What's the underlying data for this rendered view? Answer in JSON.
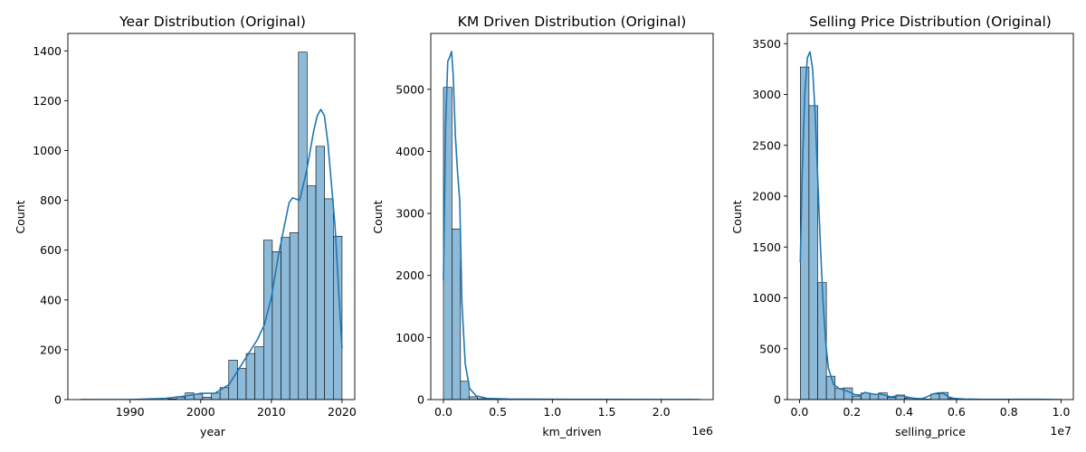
{
  "colors": {
    "bar_fill": "#8dbad8",
    "bar_edge": "#000000",
    "kde_line": "#1f77b4",
    "axis": "#000000",
    "background": "#ffffff"
  },
  "chart_data": [
    {
      "type": "bar",
      "subtype": "histogram-with-kde",
      "title": "Year Distribution (Original)",
      "xlabel": "year",
      "ylabel": "Count",
      "xlim": [
        1981.2,
        2021.8
      ],
      "ylim": [
        0,
        1470
      ],
      "xticks": [
        1990,
        2000,
        2010,
        2020
      ],
      "xtick_labels": [
        "1990",
        "2000",
        "2010",
        "2020"
      ],
      "yticks": [
        0,
        200,
        400,
        600,
        800,
        1000,
        1200,
        1400
      ],
      "ytick_labels": [
        "0",
        "200",
        "400",
        "600",
        "800",
        "1000",
        "1200",
        "1400"
      ],
      "x_offset_label": "",
      "grid": false,
      "bin_edges": [
        1983,
        1984.233,
        1985.467,
        1986.7,
        1987.933,
        1989.167,
        1990.4,
        1991.633,
        1992.867,
        1994.1,
        1995.333,
        1996.567,
        1997.8,
        1999.033,
        2000.267,
        2001.5,
        2002.733,
        2003.967,
        2005.2,
        2006.433,
        2007.667,
        2008.9,
        2010.133,
        2011.367,
        2012.6,
        2013.833,
        2015.067,
        2016.3,
        2017.533,
        2018.767,
        2020
      ],
      "counts": [
        1,
        0,
        0,
        0,
        0,
        0,
        0,
        0,
        0,
        0,
        3,
        10,
        27,
        22,
        10,
        26,
        48,
        158,
        125,
        185,
        212,
        640,
        594,
        651,
        670,
        1395,
        858,
        1017,
        806,
        656
      ],
      "kde": {
        "x": [
          1983,
          1990,
          1995,
          1998,
          2000,
          2002,
          2004,
          2006,
          2008,
          2009,
          2010,
          2011,
          2012,
          2012.5,
          2013,
          2013.5,
          2014,
          2015,
          2016,
          2016.5,
          2017,
          2017.5,
          2018,
          2019,
          2019.5,
          2020
        ],
        "y": [
          0,
          0,
          5,
          15,
          25,
          25,
          60,
          150,
          240,
          300,
          410,
          580,
          720,
          790,
          810,
          805,
          800,
          920,
          1080,
          1140,
          1165,
          1140,
          1030,
          700,
          450,
          205
        ]
      }
    },
    {
      "type": "bar",
      "subtype": "histogram-with-kde",
      "title": "KM Driven Distribution (Original)",
      "xlabel": "km_driven",
      "ylabel": "Count",
      "xlim": [
        -116000,
        2476000
      ],
      "ylim": [
        0,
        5900
      ],
      "xticks": [
        0,
        500000,
        1000000,
        1500000,
        2000000
      ],
      "xtick_labels": [
        "0.0",
        "0.5",
        "1.0",
        "1.5",
        "2.0"
      ],
      "yticks": [
        0,
        1000,
        2000,
        3000,
        4000,
        5000
      ],
      "ytick_labels": [
        "0",
        "1000",
        "2000",
        "3000",
        "4000",
        "5000"
      ],
      "x_offset_label": "1e6",
      "grid": false,
      "bin_edges": [
        1,
        78334,
        156667,
        235000,
        313333,
        391667,
        470000,
        548333,
        626667,
        705000,
        783333,
        861667,
        940000,
        1018333,
        1096667,
        1175000,
        1253333,
        1331667,
        1410000,
        1488333,
        1566667,
        1645000,
        1723333,
        1801667,
        1880000,
        1958333,
        2036667,
        2115000,
        2193333,
        2271667,
        2360457
      ],
      "counts": [
        5030,
        2750,
        295,
        45,
        15,
        6,
        4,
        3,
        2,
        1,
        1,
        1,
        1,
        0,
        0,
        0,
        0,
        0,
        0,
        0,
        0,
        0,
        0,
        0,
        0,
        0,
        0,
        0,
        0,
        1
      ],
      "kde": {
        "x": [
          1,
          20000,
          40000,
          60000,
          75000,
          90000,
          110000,
          130000,
          150000,
          170000,
          200000,
          240000,
          300000,
          400000,
          600000,
          1000000,
          1500000,
          2000000,
          2360457
        ],
        "y": [
          1920,
          4400,
          5450,
          5530,
          5610,
          5220,
          4240,
          3660,
          3200,
          1560,
          580,
          180,
          60,
          20,
          8,
          4,
          2,
          1,
          0
        ]
      }
    },
    {
      "type": "bar",
      "subtype": "histogram-with-kde",
      "title": "Selling Price Distribution (Original)",
      "xlabel": "selling_price",
      "ylabel": "Count",
      "xlim": [
        -465000,
        10465000
      ],
      "ylim": [
        0,
        3600
      ],
      "xticks": [
        0,
        2000000,
        4000000,
        6000000,
        8000000,
        10000000
      ],
      "xtick_labels": [
        "0.0",
        "0.2",
        "0.4",
        "0.6",
        "0.8",
        "1.0"
      ],
      "yticks": [
        0,
        500,
        1000,
        1500,
        2000,
        2500,
        3000,
        3500
      ],
      "ytick_labels": [
        "0",
        "500",
        "1000",
        "1500",
        "2000",
        "2500",
        "3000",
        "3500"
      ],
      "x_offset_label": "1e7",
      "grid": false,
      "bin_edges": [
        30000,
        362333,
        694667,
        1027000,
        1359333,
        1691667,
        2024000,
        2356333,
        2688667,
        3021000,
        3353333,
        3685667,
        4018000,
        4350333,
        4682667,
        5015000,
        5347333,
        5679667,
        6012000,
        6344333,
        6676667,
        7009000,
        7341333,
        7673667,
        8006000,
        8338333,
        8670667,
        9003000,
        9335333,
        9667667,
        10000000
      ],
      "counts": [
        3270,
        2890,
        1150,
        230,
        110,
        115,
        35,
        65,
        55,
        65,
        20,
        45,
        15,
        5,
        5,
        55,
        70,
        10,
        0,
        0,
        0,
        0,
        0,
        0,
        0,
        0,
        0,
        2,
        0,
        1
      ],
      "kde": {
        "x": [
          30000,
          100000,
          200000,
          300000,
          400000,
          500000,
          600000,
          700000,
          800000,
          900000,
          1000000,
          1100000,
          1300000,
          1500000,
          1700000,
          1900000,
          2100000,
          2300000,
          2500000,
          2700000,
          2900000,
          3100000,
          3300000,
          3500000,
          3700000,
          3900000,
          4100000,
          4300000,
          4500000,
          4700000,
          4900000,
          5100000,
          5300000,
          5500000,
          5700000,
          5900000,
          6300000,
          7000000,
          8000000,
          9000000,
          10000000
        ],
        "y": [
          1350,
          2200,
          3000,
          3360,
          3420,
          3250,
          2800,
          2150,
          1500,
          960,
          570,
          310,
          150,
          110,
          95,
          75,
          50,
          45,
          70,
          60,
          50,
          55,
          40,
          25,
          35,
          40,
          25,
          15,
          10,
          10,
          30,
          55,
          65,
          60,
          25,
          12,
          5,
          2,
          2,
          3,
          0
        ]
      }
    }
  ]
}
